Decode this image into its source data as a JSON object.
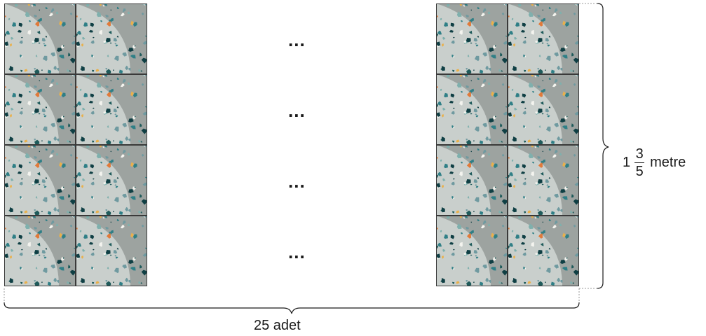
{
  "diagram": {
    "tile_grid": {
      "rows": 4,
      "visible_columns_left": 2,
      "visible_columns_right": 2
    },
    "ellipsis_text": "...",
    "bottom_label": "25 adet",
    "height_label": {
      "whole": "1",
      "numerator": "3",
      "denominator": "5",
      "unit": "metre"
    },
    "colors": {
      "tile_base": "#c9cfcc",
      "tile_shade": "#8e9492",
      "chip_colors": [
        "#1f5b5b",
        "#2f7f86",
        "#7fb0ad",
        "#e07a3a",
        "#e9b04b",
        "#f4f4ef",
        "#0f3f44",
        "#6f9aa0"
      ]
    }
  }
}
